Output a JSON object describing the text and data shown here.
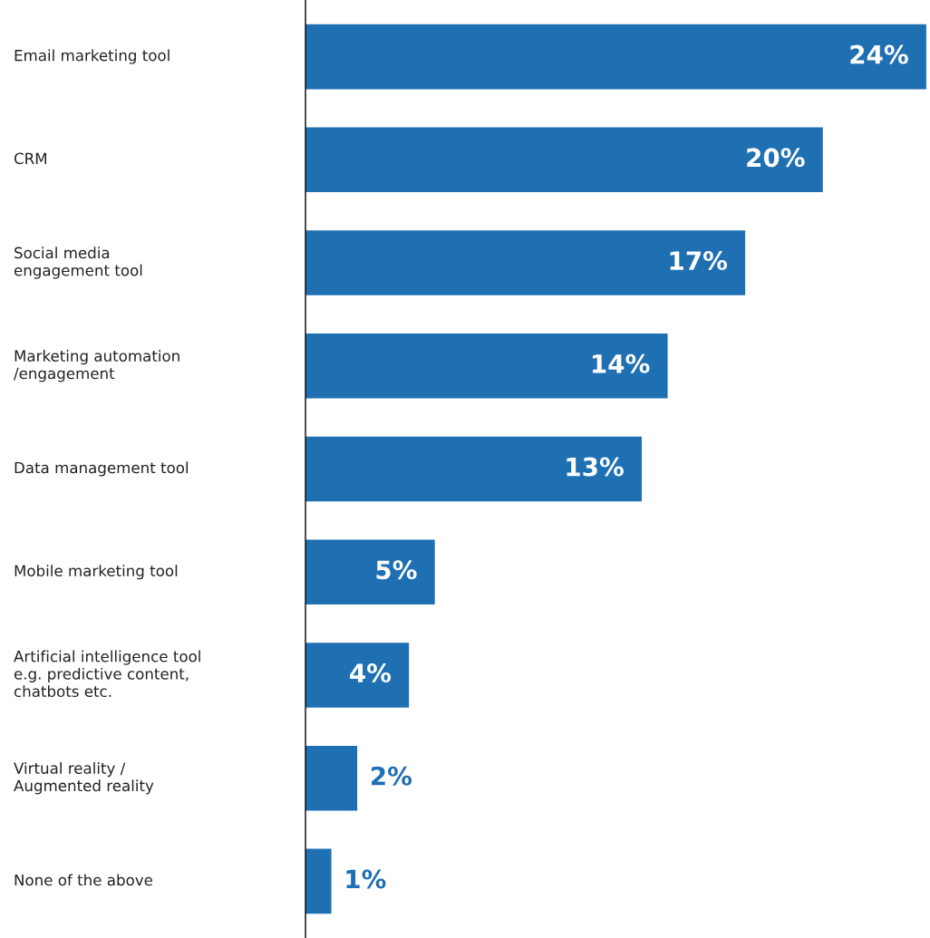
{
  "chart_data": {
    "type": "bar",
    "orientation": "horizontal",
    "categories": [
      "Email marketing tool",
      "CRM",
      "Social media\nengagement tool",
      "Marketing automation\n/engagement",
      "Data management tool",
      "Mobile marketing tool",
      "Artificial intelligence tool\ne.g. predictive content,\nchatbots etc.",
      "Virtual reality /\nAugmented reality",
      "None of the above"
    ],
    "values": [
      24,
      20,
      17,
      14,
      13,
      5,
      4,
      2,
      1
    ],
    "value_labels": [
      "24%",
      "20%",
      "17%",
      "14%",
      "13%",
      "5%",
      "4%",
      "2%",
      "1%"
    ],
    "color": "#1f70b3",
    "grid": false,
    "legend": false
  }
}
